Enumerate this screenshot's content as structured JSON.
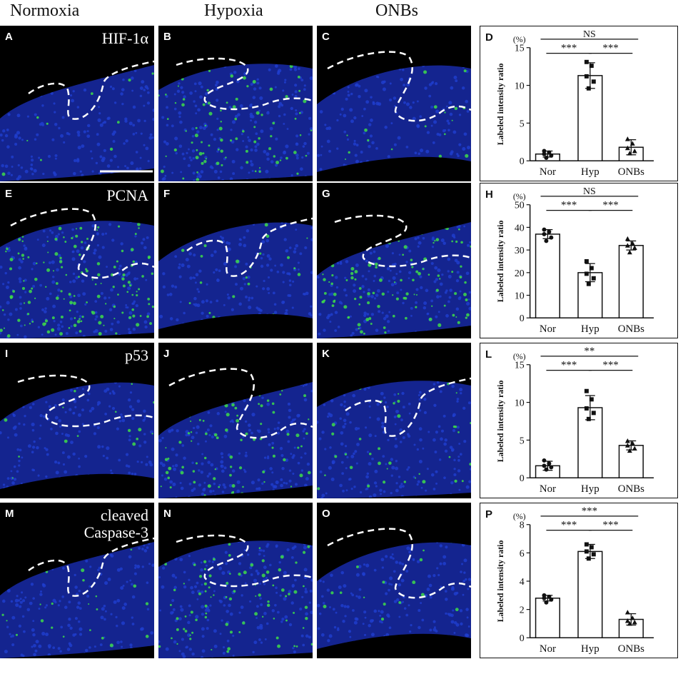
{
  "columns": [
    "Normoxia",
    "Hypoxia",
    "ONBs"
  ],
  "rows": [
    {
      "marker": "HIF-1α",
      "labels": [
        "A",
        "B",
        "C"
      ],
      "chart_label": "D",
      "green": [
        0.08,
        0.55,
        0.12
      ]
    },
    {
      "marker": "PCNA",
      "labels": [
        "E",
        "F",
        "G"
      ],
      "chart_label": "H",
      "green": [
        0.85,
        0.15,
        0.75
      ]
    },
    {
      "marker": "p53",
      "labels": [
        "I",
        "J",
        "K"
      ],
      "chart_label": "L",
      "green": [
        0.12,
        0.6,
        0.2
      ]
    },
    {
      "marker": "cleaved\nCaspase-3",
      "labels": [
        "M",
        "N",
        "O"
      ],
      "chart_label": "P",
      "green": [
        0.15,
        0.5,
        0.1
      ]
    }
  ],
  "colors": {
    "nuclei": "#1f3fd0",
    "stain": "#3ddc4a",
    "dashed": "#ffffff"
  },
  "chart_data": [
    {
      "type": "bar",
      "categories": [
        "Nor",
        "Hyp",
        "ONBs"
      ],
      "values": [
        0.9,
        11.3,
        1.8
      ],
      "errors": [
        0.4,
        1.7,
        1.0
      ],
      "points": [
        [
          0.4,
          0.7,
          0.9,
          1.1,
          1.3
        ],
        [
          9.6,
          10.5,
          11.2,
          12.6,
          13.1
        ],
        [
          1.0,
          1.3,
          1.7,
          2.3,
          2.9
        ]
      ],
      "ylabel": "Labeled intensity ratio",
      "unit": "(%)",
      "ylim": [
        0,
        15
      ],
      "yticks": [
        0,
        5,
        10,
        15
      ],
      "sig": [
        {
          "text": "NS",
          "from": 0,
          "to": 2,
          "level": 2
        },
        {
          "text": "***",
          "from": 0,
          "to": 1,
          "level": 1
        },
        {
          "text": "***",
          "from": 1,
          "to": 2,
          "level": 1
        }
      ]
    },
    {
      "type": "bar",
      "categories": [
        "Nor",
        "Hyp",
        "ONBs"
      ],
      "values": [
        37,
        20,
        32
      ],
      "errors": [
        2,
        4,
        2
      ],
      "points": [
        [
          34,
          35.5,
          37,
          38,
          39
        ],
        [
          15,
          17.5,
          19.5,
          22,
          25
        ],
        [
          29,
          31,
          32,
          33,
          35
        ]
      ],
      "ylabel": "Labeled intensity ratio",
      "unit": "(%)",
      "ylim": [
        0,
        50
      ],
      "yticks": [
        0,
        10,
        20,
        30,
        40,
        50
      ],
      "sig": [
        {
          "text": "NS",
          "from": 0,
          "to": 2,
          "level": 2
        },
        {
          "text": "***",
          "from": 0,
          "to": 1,
          "level": 1
        },
        {
          "text": "***",
          "from": 1,
          "to": 2,
          "level": 1
        }
      ]
    },
    {
      "type": "bar",
      "categories": [
        "Nor",
        "Hyp",
        "ONBs"
      ],
      "values": [
        1.6,
        9.3,
        4.3
      ],
      "errors": [
        0.6,
        1.6,
        0.6
      ],
      "points": [
        [
          1.1,
          1.4,
          1.6,
          1.9,
          2.3
        ],
        [
          7.8,
          8.6,
          9.2,
          10.4,
          11.5
        ],
        [
          3.6,
          3.9,
          4.3,
          4.6,
          4.9
        ]
      ],
      "ylabel": "Labeled intensity ratio",
      "unit": "(%)",
      "ylim": [
        0,
        15
      ],
      "yticks": [
        0,
        5,
        10,
        15
      ],
      "sig": [
        {
          "text": "**",
          "from": 0,
          "to": 2,
          "level": 2
        },
        {
          "text": "***",
          "from": 0,
          "to": 1,
          "level": 1
        },
        {
          "text": "***",
          "from": 1,
          "to": 2,
          "level": 1
        }
      ]
    },
    {
      "type": "bar",
      "categories": [
        "Nor",
        "Hyp",
        "ONBs"
      ],
      "values": [
        2.8,
        6.1,
        1.3
      ],
      "errors": [
        0.2,
        0.5,
        0.4
      ],
      "points": [
        [
          2.5,
          2.7,
          2.8,
          2.9,
          3.0
        ],
        [
          5.6,
          5.9,
          6.1,
          6.4,
          6.6
        ],
        [
          1.0,
          1.1,
          1.2,
          1.4,
          1.8
        ]
      ],
      "ylabel": "Labeled intensity ratio",
      "unit": "(%)",
      "ylim": [
        0,
        8
      ],
      "yticks": [
        0,
        2,
        4,
        6,
        8
      ],
      "sig": [
        {
          "text": "***",
          "from": 0,
          "to": 2,
          "level": 2
        },
        {
          "text": "***",
          "from": 0,
          "to": 1,
          "level": 1
        },
        {
          "text": "***",
          "from": 1,
          "to": 2,
          "level": 1
        }
      ]
    }
  ]
}
